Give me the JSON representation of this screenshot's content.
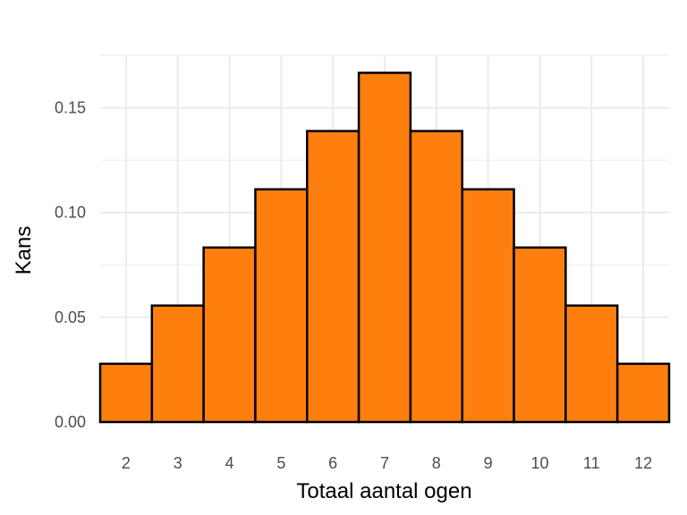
{
  "chart_data": {
    "type": "bar",
    "title": "",
    "xlabel": "Totaal aantal ogen",
    "ylabel": "Kans",
    "categories": [
      2,
      3,
      4,
      5,
      6,
      7,
      8,
      9,
      10,
      11,
      12
    ],
    "values": [
      0.0278,
      0.0556,
      0.0833,
      0.1111,
      0.1389,
      0.1667,
      0.1389,
      0.1111,
      0.0833,
      0.0556,
      0.0278
    ],
    "ylim": [
      0,
      0.175
    ],
    "yticks": [
      0.0,
      0.05,
      0.1,
      0.15
    ],
    "ytick_labels": [
      "0.00",
      "0.05",
      "0.10",
      "0.15"
    ],
    "grid": true,
    "bar_color": "#ff7f0e",
    "bar_edge_color": "#000000",
    "grid_color": "#ebebeb"
  }
}
